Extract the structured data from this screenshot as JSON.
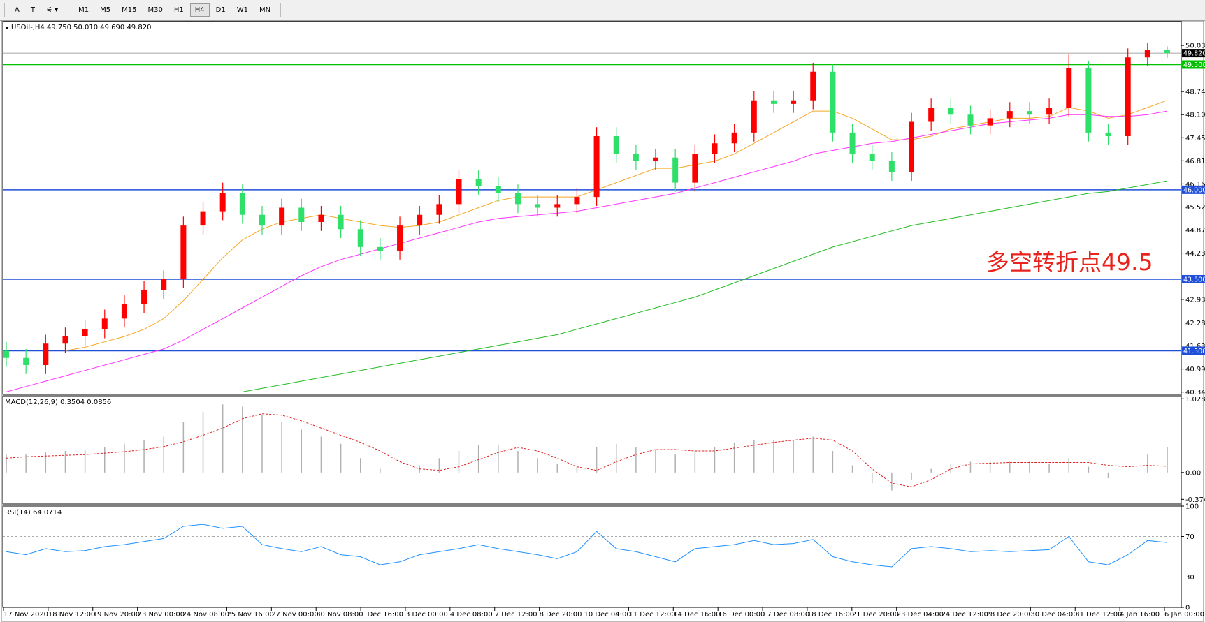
{
  "toolbar": {
    "tools": [
      "A",
      "T"
    ],
    "timeframes": [
      "M1",
      "M5",
      "M15",
      "M30",
      "H1",
      "H4",
      "D1",
      "W1",
      "MN"
    ],
    "selected": 5
  },
  "chart_data": {
    "type": "candlestick",
    "header": "USOil-,H4  49.750 50.010 49.690 49.820",
    "annotation": "多空转折点49.5",
    "annotation_color": "#e8231e",
    "up_color": "#ff0000",
    "down_color": "#2ee06a",
    "open": [
      41.5,
      41.3,
      41.1,
      41.7,
      41.9,
      42.1,
      42.4,
      42.8,
      43.2,
      43.5,
      45.0,
      45.4,
      45.9,
      45.3,
      45.0,
      45.5,
      45.1,
      45.3,
      44.9,
      44.4,
      44.3,
      45.0,
      45.3,
      45.6,
      46.3,
      46.1,
      45.9,
      45.6,
      45.5,
      45.6,
      45.8,
      47.5,
      47.0,
      46.8,
      46.9,
      46.2,
      47.0,
      47.3,
      47.6,
      48.5,
      48.4,
      48.5,
      49.3,
      47.6,
      47.0,
      46.8,
      46.5,
      47.9,
      48.3,
      48.1,
      47.8,
      48.0,
      48.2,
      48.1,
      48.3,
      49.4,
      47.6,
      47.5,
      49.7,
      49.9
    ],
    "high": [
      41.75,
      41.55,
      41.95,
      42.15,
      42.35,
      42.65,
      43.05,
      43.45,
      43.75,
      45.25,
      45.65,
      46.2,
      46.15,
      45.55,
      45.75,
      45.75,
      45.55,
      45.55,
      45.15,
      44.65,
      45.25,
      45.55,
      45.85,
      46.55,
      46.55,
      46.35,
      46.15,
      45.85,
      45.85,
      46.05,
      47.75,
      47.75,
      47.25,
      47.15,
      47.15,
      47.25,
      47.55,
      47.85,
      48.75,
      48.75,
      48.75,
      49.55,
      49.5,
      47.85,
      47.25,
      47.05,
      48.15,
      48.55,
      48.55,
      48.35,
      48.25,
      48.45,
      48.45,
      48.55,
      49.8,
      49.6,
      47.85,
      49.95,
      50.1,
      50.01
    ],
    "low": [
      41.05,
      40.85,
      40.85,
      41.45,
      41.65,
      41.85,
      42.15,
      42.55,
      42.95,
      43.25,
      44.75,
      45.15,
      45.05,
      44.75,
      44.75,
      44.85,
      44.85,
      44.65,
      44.15,
      44.05,
      44.05,
      44.75,
      45.05,
      45.35,
      45.85,
      45.65,
      45.35,
      45.25,
      45.25,
      45.35,
      45.55,
      46.75,
      46.55,
      46.55,
      45.95,
      45.95,
      46.75,
      47.05,
      47.35,
      48.15,
      48.15,
      48.25,
      47.35,
      46.75,
      46.55,
      46.25,
      46.25,
      47.65,
      47.85,
      47.55,
      47.55,
      47.75,
      47.85,
      47.85,
      48.05,
      47.35,
      47.25,
      47.25,
      49.45,
      49.69
    ],
    "close": [
      41.3,
      41.1,
      41.7,
      41.9,
      42.1,
      42.4,
      42.8,
      43.2,
      43.5,
      45.0,
      45.4,
      45.9,
      45.3,
      45.0,
      45.5,
      45.1,
      45.3,
      44.9,
      44.4,
      44.3,
      45.0,
      45.3,
      45.6,
      46.3,
      46.1,
      45.9,
      45.6,
      45.5,
      45.6,
      45.8,
      47.5,
      47.0,
      46.8,
      46.9,
      46.2,
      47.0,
      47.3,
      47.6,
      48.5,
      48.4,
      48.5,
      49.3,
      47.6,
      47.0,
      46.8,
      46.5,
      47.9,
      48.3,
      48.1,
      47.8,
      48.0,
      48.2,
      48.1,
      48.3,
      49.4,
      47.6,
      47.5,
      49.7,
      49.9,
      49.82
    ],
    "moving_averages": [
      {
        "color": "#f5a623",
        "values": [
          null,
          null,
          null,
          41.5,
          41.6,
          41.75,
          41.9,
          42.1,
          42.4,
          42.9,
          43.5,
          44.1,
          44.6,
          44.9,
          45.1,
          45.2,
          45.3,
          45.2,
          45.1,
          45.0,
          44.95,
          45.0,
          45.1,
          45.3,
          45.5,
          45.7,
          45.8,
          45.8,
          45.8,
          45.8,
          46.0,
          46.2,
          46.4,
          46.6,
          46.6,
          46.7,
          46.8,
          47.0,
          47.3,
          47.6,
          47.9,
          48.2,
          48.2,
          48.0,
          47.7,
          47.4,
          47.4,
          47.5,
          47.7,
          47.8,
          47.9,
          48.0,
          48.0,
          48.05,
          48.3,
          48.2,
          48.0,
          48.1,
          48.3,
          48.5
        ]
      },
      {
        "color": "#ff33ff",
        "values": [
          40.35,
          40.5,
          40.65,
          40.8,
          40.95,
          41.1,
          41.25,
          41.4,
          41.55,
          41.8,
          42.1,
          42.4,
          42.7,
          43.0,
          43.3,
          43.6,
          43.85,
          44.05,
          44.2,
          44.35,
          44.5,
          44.65,
          44.8,
          44.95,
          45.1,
          45.2,
          45.25,
          45.3,
          45.35,
          45.4,
          45.5,
          45.6,
          45.7,
          45.8,
          45.9,
          46.05,
          46.2,
          46.35,
          46.5,
          46.65,
          46.8,
          47.0,
          47.1,
          47.2,
          47.3,
          47.35,
          47.45,
          47.55,
          47.65,
          47.75,
          47.85,
          47.9,
          47.95,
          48.0,
          48.1,
          48.1,
          48.05,
          48.05,
          48.1,
          48.2
        ]
      },
      {
        "color": "#22bb22",
        "values": [
          null,
          null,
          null,
          null,
          null,
          null,
          null,
          null,
          null,
          null,
          null,
          null,
          40.35,
          40.45,
          40.55,
          40.65,
          40.75,
          40.85,
          40.95,
          41.05,
          41.15,
          41.25,
          41.35,
          41.45,
          41.55,
          41.65,
          41.75,
          41.85,
          41.95,
          42.1,
          42.25,
          42.4,
          42.55,
          42.7,
          42.85,
          43.0,
          43.2,
          43.4,
          43.6,
          43.8,
          44.0,
          44.2,
          44.4,
          44.55,
          44.7,
          44.85,
          45.0,
          45.1,
          45.2,
          45.3,
          45.4,
          45.5,
          45.6,
          45.7,
          45.8,
          45.9,
          45.95,
          46.05,
          46.15,
          46.25
        ]
      }
    ],
    "levels": [
      {
        "value": 49.82,
        "label": "49.820",
        "line_color": "#888888",
        "box_color": "#000000"
      },
      {
        "value": 49.5,
        "label": "49.500",
        "line_color": "#00c000",
        "box_color": "#00c000"
      },
      {
        "value": 46.0,
        "label": "46.000",
        "line_color": "#1f4fd8",
        "box_color": "#1f4fd8"
      },
      {
        "value": 43.5,
        "label": "43.500",
        "line_color": "#1f4fd8",
        "box_color": "#1f4fd8"
      },
      {
        "value": 41.5,
        "label": "41.500",
        "line_color": "#1f4fd8",
        "box_color": "#1f4fd8"
      }
    ],
    "ylim": [
      40.28,
      50.7
    ],
    "yticks": [
      50.035,
      {
        "value": 48.745,
        "label": "48.745"
      },
      {
        "value": 48.1,
        "label": "48.100"
      },
      47.455,
      {
        "value": 46.81,
        "label": "46.810"
      },
      46.165,
      {
        "value": 45.52,
        "label": "45.520"
      },
      44.875,
      {
        "value": 44.23,
        "label": "44.230"
      },
      42.935,
      {
        "value": 42.28,
        "label": "42.280"
      },
      41.635,
      {
        "value": 40.99,
        "label": "40.990"
      },
      40.345
    ],
    "x_labels": [
      "17 Nov 2020",
      "18 Nov 12:00",
      "19 Nov 20:00",
      "23 Nov 00:00",
      "24 Nov 08:00",
      "25 Nov 16:00",
      "27 Nov 00:00",
      "30 Nov 08:00",
      "1 Dec 16:00",
      "3 Dec 00:00",
      "4 Dec 08:00",
      "7 Dec 12:00",
      "8 Dec 20:00",
      "10 Dec 04:00",
      "11 Dec 12:00",
      "14 Dec 16:00",
      "16 Dec 00:00",
      "17 Dec 08:00",
      "18 Dec 16:00",
      "21 Dec 20:00",
      "23 Dec 04:00",
      "24 Dec 12:00",
      "28 Dec 20:00",
      "30 Dec 04:00",
      "31 Dec 12:00",
      "4 Jan 16:00",
      "6 Jan 00:00"
    ],
    "macd": {
      "label": "MACD(12,26,9) 0.3504 0.0856",
      "hist_color": "#b0b0b0",
      "signal_color": "#e02020",
      "histogram": [
        0.25,
        0.25,
        0.28,
        0.3,
        0.32,
        0.35,
        0.4,
        0.45,
        0.5,
        0.7,
        0.85,
        0.95,
        0.92,
        0.8,
        0.7,
        0.6,
        0.5,
        0.4,
        0.2,
        0.05,
        0.0,
        0.1,
        0.2,
        0.3,
        0.38,
        0.38,
        0.3,
        0.2,
        0.12,
        0.08,
        0.35,
        0.4,
        0.35,
        0.32,
        0.25,
        0.3,
        0.35,
        0.42,
        0.45,
        0.45,
        0.45,
        0.5,
        0.3,
        0.1,
        -0.15,
        -0.25,
        -0.1,
        0.05,
        0.12,
        0.15,
        0.15,
        0.15,
        0.15,
        0.12,
        0.2,
        0.08,
        -0.08,
        0.0,
        0.25,
        0.3504
      ],
      "signal": [
        0.2,
        0.22,
        0.23,
        0.24,
        0.25,
        0.27,
        0.29,
        0.32,
        0.36,
        0.43,
        0.52,
        0.62,
        0.75,
        0.82,
        0.8,
        0.72,
        0.62,
        0.52,
        0.42,
        0.3,
        0.15,
        0.05,
        0.03,
        0.08,
        0.18,
        0.28,
        0.35,
        0.3,
        0.2,
        0.08,
        0.03,
        0.15,
        0.25,
        0.32,
        0.32,
        0.3,
        0.3,
        0.34,
        0.38,
        0.42,
        0.45,
        0.48,
        0.45,
        0.3,
        0.05,
        -0.15,
        -0.2,
        -0.1,
        0.05,
        0.12,
        0.13,
        0.14,
        0.14,
        0.14,
        0.14,
        0.14,
        0.1,
        0.08,
        0.1,
        0.0856
      ],
      "ylim": [
        -0.44,
        1.07
      ],
      "yticks": [
        1.0283,
        {
          "value": 0,
          "label": "0.00"
        },
        -0.3748
      ]
    },
    "rsi": {
      "label": "RSI(14) 64.0714",
      "color": "#1e90ff",
      "values": [
        55,
        52,
        58,
        55,
        56,
        60,
        62,
        65,
        68,
        80,
        82,
        78,
        80,
        62,
        58,
        55,
        60,
        52,
        50,
        42,
        45,
        52,
        55,
        58,
        62,
        58,
        55,
        52,
        48,
        55,
        75,
        58,
        55,
        50,
        45,
        58,
        60,
        62,
        66,
        62,
        63,
        67,
        50,
        45,
        42,
        40,
        58,
        60,
        58,
        55,
        56,
        55,
        56,
        57,
        70,
        45,
        42,
        52,
        66,
        64.0714
      ],
      "ylim": [
        0,
        100
      ],
      "yticks": [
        100,
        70,
        30,
        0
      ],
      "dashed": [
        70,
        30
      ]
    }
  }
}
